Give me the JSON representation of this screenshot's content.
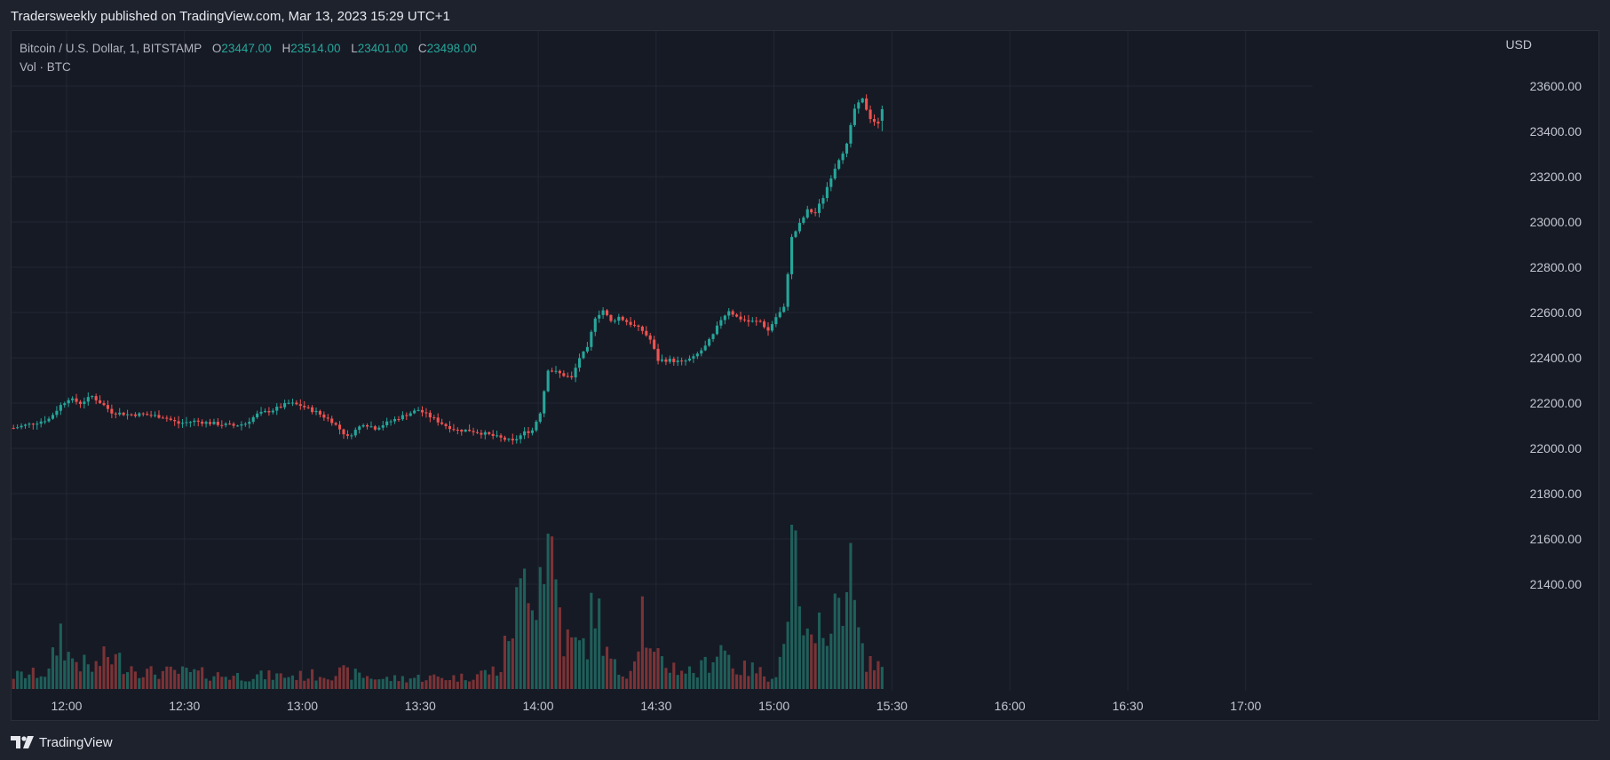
{
  "header": {
    "published_line": "Tradersweekly published on TradingView.com, Mar 13, 2023 15:29 UTC+1"
  },
  "legend": {
    "symbol": "Bitcoin / U.S. Dollar, 1, BITSTAMP",
    "o_label": "O",
    "o_value": "23447.00",
    "h_label": "H",
    "h_value": "23514.00",
    "l_label": "L",
    "l_value": "23401.00",
    "c_label": "C",
    "c_value": "23498.00",
    "volume_label": "Vol · BTC"
  },
  "footer": {
    "brand": "TradingView"
  },
  "colors": {
    "up": "#26a69a",
    "down": "#ef5350",
    "up_volume": "#1f5f5a",
    "down_volume": "#7a3336",
    "grid": "#232733",
    "background": "#161a25"
  },
  "chart_data": {
    "type": "candlestick",
    "currency": "USD",
    "y_ticks": [
      23600,
      23400,
      23200,
      23000,
      22800,
      22600,
      22400,
      22200,
      22000,
      21800,
      21600,
      21400
    ],
    "ylim": [
      21350,
      23750
    ],
    "x_ticks": [
      "12:00",
      "12:30",
      "13:00",
      "13:30",
      "14:00",
      "14:30",
      "15:00",
      "15:30",
      "16:00",
      "16:30",
      "17:00"
    ],
    "x_tick_minutes": [
      720,
      750,
      780,
      810,
      840,
      870,
      900,
      930,
      960,
      990,
      1020
    ],
    "xlim_minutes": [
      706,
      1037
    ],
    "close_anchors": [
      [
        706,
        22090
      ],
      [
        711,
        22110
      ],
      [
        715,
        22130
      ],
      [
        718,
        22190
      ],
      [
        720,
        22220
      ],
      [
        723,
        22200
      ],
      [
        726,
        22230
      ],
      [
        729,
        22190
      ],
      [
        731,
        22160
      ],
      [
        735,
        22150
      ],
      [
        739,
        22150
      ],
      [
        744,
        22140
      ],
      [
        748,
        22110
      ],
      [
        752,
        22120
      ],
      [
        757,
        22110
      ],
      [
        762,
        22100
      ],
      [
        765,
        22110
      ],
      [
        768,
        22150
      ],
      [
        772,
        22170
      ],
      [
        776,
        22200
      ],
      [
        779,
        22190
      ],
      [
        783,
        22160
      ],
      [
        787,
        22120
      ],
      [
        791,
        22050
      ],
      [
        795,
        22110
      ],
      [
        798,
        22090
      ],
      [
        802,
        22120
      ],
      [
        806,
        22150
      ],
      [
        809,
        22170
      ],
      [
        812,
        22140
      ],
      [
        816,
        22100
      ],
      [
        819,
        22080
      ],
      [
        822,
        22080
      ],
      [
        827,
        22060
      ],
      [
        831,
        22040
      ],
      [
        833,
        22030
      ],
      [
        836,
        22070
      ],
      [
        838,
        22080
      ],
      [
        840,
        22160
      ],
      [
        842,
        22350
      ],
      [
        845,
        22330
      ],
      [
        848,
        22310
      ],
      [
        850,
        22400
      ],
      [
        852,
        22440
      ],
      [
        854,
        22580
      ],
      [
        856,
        22610
      ],
      [
        858,
        22560
      ],
      [
        860,
        22580
      ],
      [
        863,
        22550
      ],
      [
        866,
        22520
      ],
      [
        868,
        22480
      ],
      [
        870,
        22390
      ],
      [
        873,
        22390
      ],
      [
        876,
        22380
      ],
      [
        879,
        22400
      ],
      [
        882,
        22450
      ],
      [
        884,
        22500
      ],
      [
        886,
        22570
      ],
      [
        888,
        22610
      ],
      [
        890,
        22580
      ],
      [
        893,
        22560
      ],
      [
        896,
        22560
      ],
      [
        898,
        22520
      ],
      [
        900,
        22580
      ],
      [
        902,
        22620
      ],
      [
        904,
        22930
      ],
      [
        906,
        22990
      ],
      [
        908,
        23050
      ],
      [
        910,
        23040
      ],
      [
        912,
        23110
      ],
      [
        914,
        23200
      ],
      [
        916,
        23280
      ],
      [
        918,
        23340
      ],
      [
        920,
        23500
      ],
      [
        922,
        23540
      ],
      [
        924,
        23460
      ],
      [
        926,
        23430
      ],
      [
        927,
        23498
      ]
    ],
    "volume_anchors": [
      [
        706,
        0.08
      ],
      [
        715,
        0.1
      ],
      [
        718,
        0.35
      ],
      [
        720,
        0.2
      ],
      [
        726,
        0.12
      ],
      [
        730,
        0.2
      ],
      [
        740,
        0.1
      ],
      [
        750,
        0.1
      ],
      [
        760,
        0.08
      ],
      [
        770,
        0.08
      ],
      [
        780,
        0.08
      ],
      [
        790,
        0.1
      ],
      [
        800,
        0.06
      ],
      [
        810,
        0.07
      ],
      [
        820,
        0.07
      ],
      [
        830,
        0.12
      ],
      [
        832,
        0.35
      ],
      [
        835,
        0.55
      ],
      [
        837,
        0.8
      ],
      [
        839,
        0.6
      ],
      [
        841,
        0.9
      ],
      [
        843,
        0.85
      ],
      [
        846,
        0.3
      ],
      [
        850,
        0.25
      ],
      [
        852,
        0.3
      ],
      [
        854,
        0.55
      ],
      [
        857,
        0.2
      ],
      [
        860,
        0.1
      ],
      [
        863,
        0.12
      ],
      [
        866,
        0.5
      ],
      [
        868,
        0.2
      ],
      [
        872,
        0.15
      ],
      [
        876,
        0.12
      ],
      [
        880,
        0.1
      ],
      [
        884,
        0.2
      ],
      [
        886,
        0.27
      ],
      [
        888,
        0.2
      ],
      [
        890,
        0.12
      ],
      [
        894,
        0.12
      ],
      [
        898,
        0.08
      ],
      [
        900,
        0.1
      ],
      [
        902,
        0.25
      ],
      [
        904,
        1.0
      ],
      [
        906,
        0.4
      ],
      [
        908,
        0.3
      ],
      [
        910,
        0.2
      ],
      [
        912,
        0.55
      ],
      [
        914,
        0.3
      ],
      [
        918,
        0.8
      ],
      [
        920,
        0.5
      ],
      [
        922,
        0.2
      ],
      [
        924,
        0.17
      ],
      [
        926,
        0.12
      ],
      [
        927,
        0.18
      ]
    ]
  }
}
